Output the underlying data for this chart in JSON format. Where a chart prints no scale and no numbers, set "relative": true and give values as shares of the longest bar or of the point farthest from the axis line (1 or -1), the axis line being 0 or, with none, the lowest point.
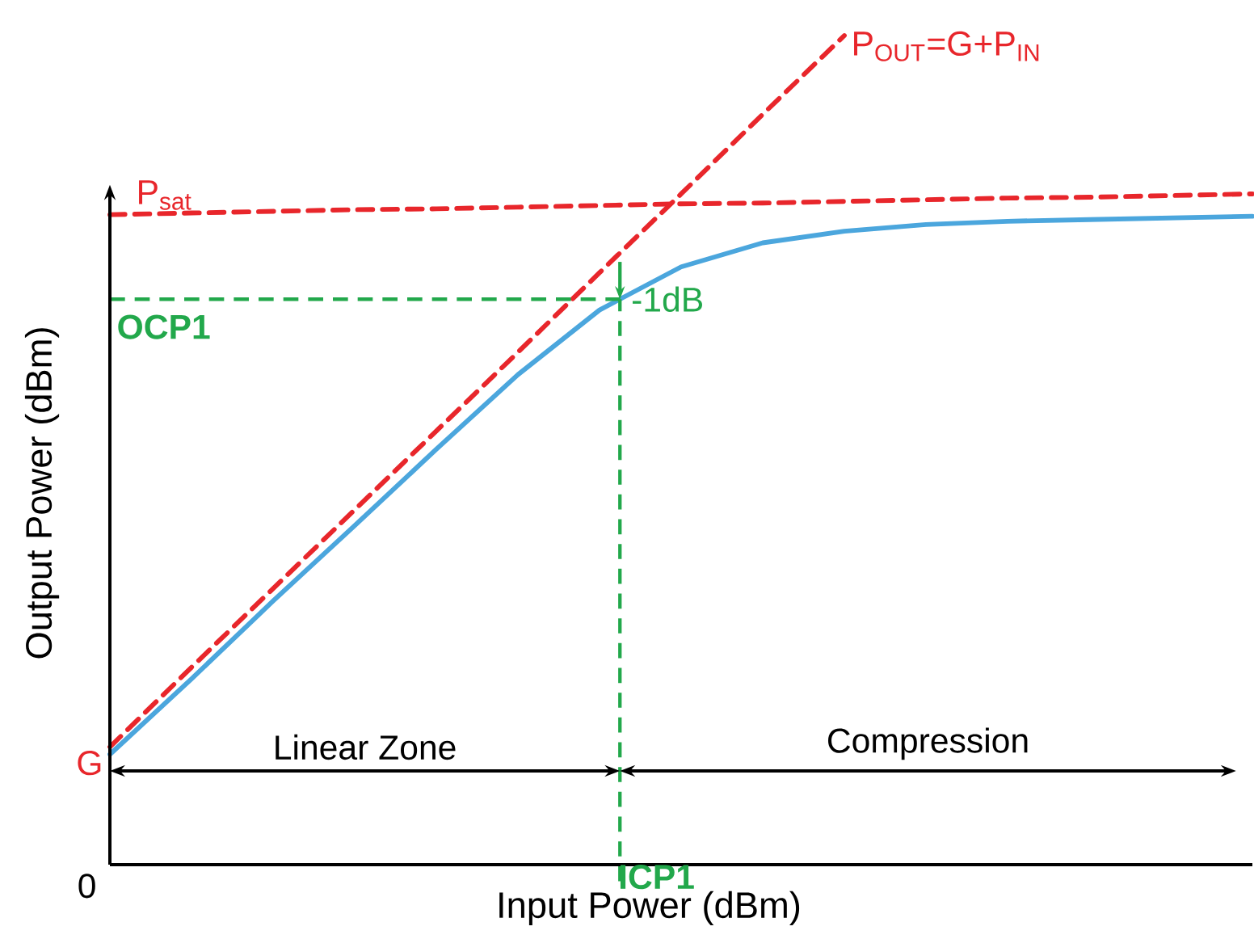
{
  "chart_data": {
    "type": "line",
    "relative": true,
    "xlabel": "Input Power (dBm)",
    "ylabel": "Output Power (dBm)",
    "categories": [
      null,
      null,
      null,
      null,
      null,
      null,
      null,
      null,
      null,
      null,
      null,
      null,
      null,
      null,
      null
    ],
    "series": [
      {
        "color": "#4ba6dd",
        "line_style": "solid",
        "values": [
          0.133,
          0.224,
          0.318,
          0.409,
          0.501,
          0.591,
          0.669,
          0.721,
          0.75,
          0.764,
          0.772,
          0.776,
          0.778,
          0.78,
          0.782
        ]
      },
      {
        "name": "P$_{OUT}$=G+P$_{IN}$",
        "color": "#e8262b",
        "line_style": "dashed",
        "values": [
          0.142,
          0.238,
          0.333,
          0.428,
          0.523,
          0.618,
          0.714,
          0.809,
          0.905,
          1.0,
          null,
          null,
          null,
          null,
          null
        ]
      },
      {
        "name": "P$_{sat}$",
        "color": "#e8262b",
        "line_style": "dashed",
        "values": [
          0.784,
          0.786,
          0.788,
          0.79,
          0.791,
          0.793,
          0.795,
          0.797,
          0.798,
          0.8,
          0.802,
          0.804,
          0.805,
          0.807,
          0.809
        ]
      }
    ],
    "ref_lines": [
      {
        "axis": "y",
        "value": 0.682,
        "label": "OCP1",
        "color": "#22a84b",
        "line_style": "dashed"
      }
    ],
    "annotations": [
      "0",
      "G",
      "-1dB",
      "Linear Zone",
      "Compression",
      "ICP1"
    ]
  }
}
